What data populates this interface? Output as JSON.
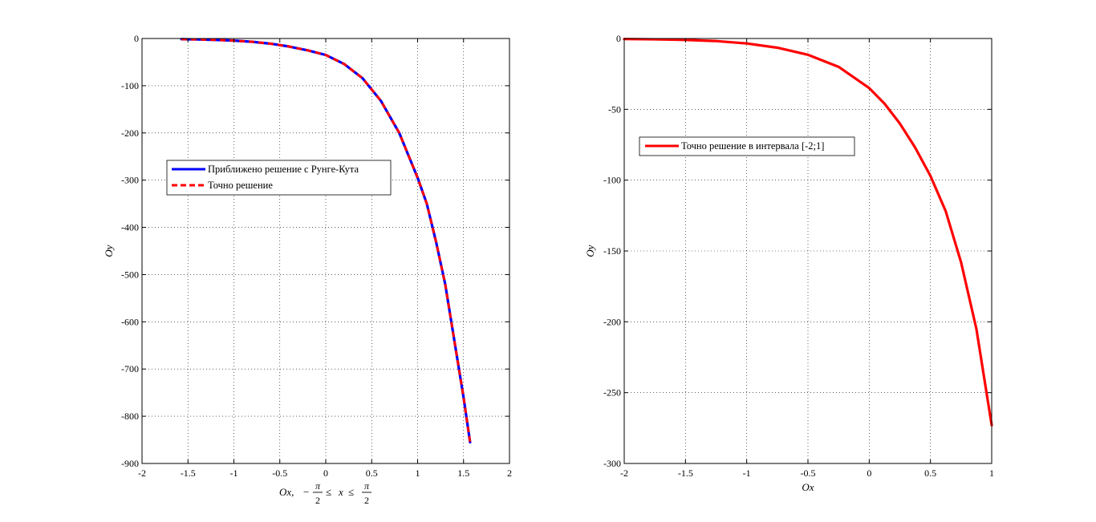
{
  "chart_data": [
    {
      "type": "line",
      "xlim": [
        -2,
        2
      ],
      "ylim": [
        -900,
        0
      ],
      "xticks": [
        "-2",
        "-1.5",
        "-1",
        "-0.5",
        "0",
        "0.5",
        "1",
        "1.5",
        "2"
      ],
      "yticks": [
        "0",
        "-100",
        "-200",
        "-300",
        "-400",
        "-500",
        "-600",
        "-700",
        "-800",
        "-900"
      ],
      "grid": true,
      "ylabel": "Oy",
      "xlabel_parts": {
        "var": "Ox,",
        "minus": "−",
        "numerator": "π",
        "denominator": "2",
        "leq": "≤",
        "x": "x"
      },
      "legend_position": "center-left",
      "series": [
        {
          "name": "Приближено решение с Рунге-Кута",
          "color": "#0000ff",
          "style": "solid",
          "x": [
            -1.571,
            -1.4,
            -1.2,
            -1.0,
            -0.8,
            -0.6,
            -0.4,
            -0.2,
            0.0,
            0.2,
            0.4,
            0.6,
            0.8,
            1.0,
            1.1,
            1.2,
            1.3,
            1.4,
            1.5,
            1.571
          ],
          "y": [
            -1.5,
            -2,
            -3,
            -4.5,
            -7,
            -11,
            -17,
            -25,
            -35,
            -54,
            -84,
            -132,
            -200,
            -295,
            -350,
            -430,
            -520,
            -640,
            -760,
            -855
          ]
        },
        {
          "name": "Точно решение",
          "color": "#ff0000",
          "style": "dashed",
          "x": [
            -1.571,
            -1.4,
            -1.2,
            -1.0,
            -0.8,
            -0.6,
            -0.4,
            -0.2,
            0.0,
            0.2,
            0.4,
            0.6,
            0.8,
            1.0,
            1.1,
            1.2,
            1.3,
            1.4,
            1.5,
            1.571
          ],
          "y": [
            -1.5,
            -2,
            -3,
            -4.5,
            -7,
            -11,
            -17,
            -25,
            -35,
            -54,
            -84,
            -132,
            -200,
            -295,
            -350,
            -430,
            -520,
            -640,
            -760,
            -855
          ]
        }
      ]
    },
    {
      "type": "line",
      "xlim": [
        -2,
        1
      ],
      "ylim": [
        -300,
        0
      ],
      "xticks": [
        "-2",
        "-1.5",
        "-1",
        "-0.5",
        "0",
        "0.5",
        "1"
      ],
      "yticks": [
        "0",
        "-50",
        "-100",
        "-150",
        "-200",
        "-250",
        "-300"
      ],
      "grid": true,
      "xlabel": "Ox",
      "ylabel": "Oy",
      "legend_position": "upper-left",
      "series": [
        {
          "name": "Точно решение в интервала [-2;1]",
          "color": "#ff0000",
          "style": "solid",
          "x": [
            -2.0,
            -1.75,
            -1.5,
            -1.25,
            -1.0,
            -0.75,
            -0.5,
            -0.25,
            0.0,
            0.125,
            0.25,
            0.375,
            0.5,
            0.625,
            0.75,
            0.875,
            1.0
          ],
          "y": [
            -0.4,
            -0.6,
            -1,
            -1.8,
            -3.5,
            -6.5,
            -11.5,
            -20,
            -35,
            -46,
            -60,
            -77,
            -97,
            -122,
            -158,
            -205,
            -273
          ]
        }
      ]
    }
  ]
}
